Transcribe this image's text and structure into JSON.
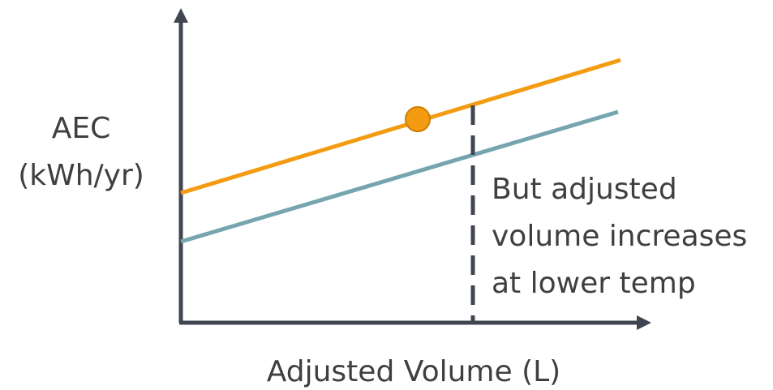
{
  "diagram": {
    "y_axis_label_line1": "AEC",
    "y_axis_label_line2": "(kWh/yr)",
    "x_axis_label": "Adjusted Volume (L)",
    "annotation_line1": "But adjusted",
    "annotation_line2": "volume increases",
    "annotation_line3": "at lower temp"
  },
  "colors": {
    "axis": "#404552",
    "upper_line": "#f39c12",
    "lower_line": "#76a5af",
    "marker_fill": "#f39c12",
    "marker_stroke": "#d07c00",
    "dashed_line": "#404552",
    "text": "#3f3f3f"
  }
}
